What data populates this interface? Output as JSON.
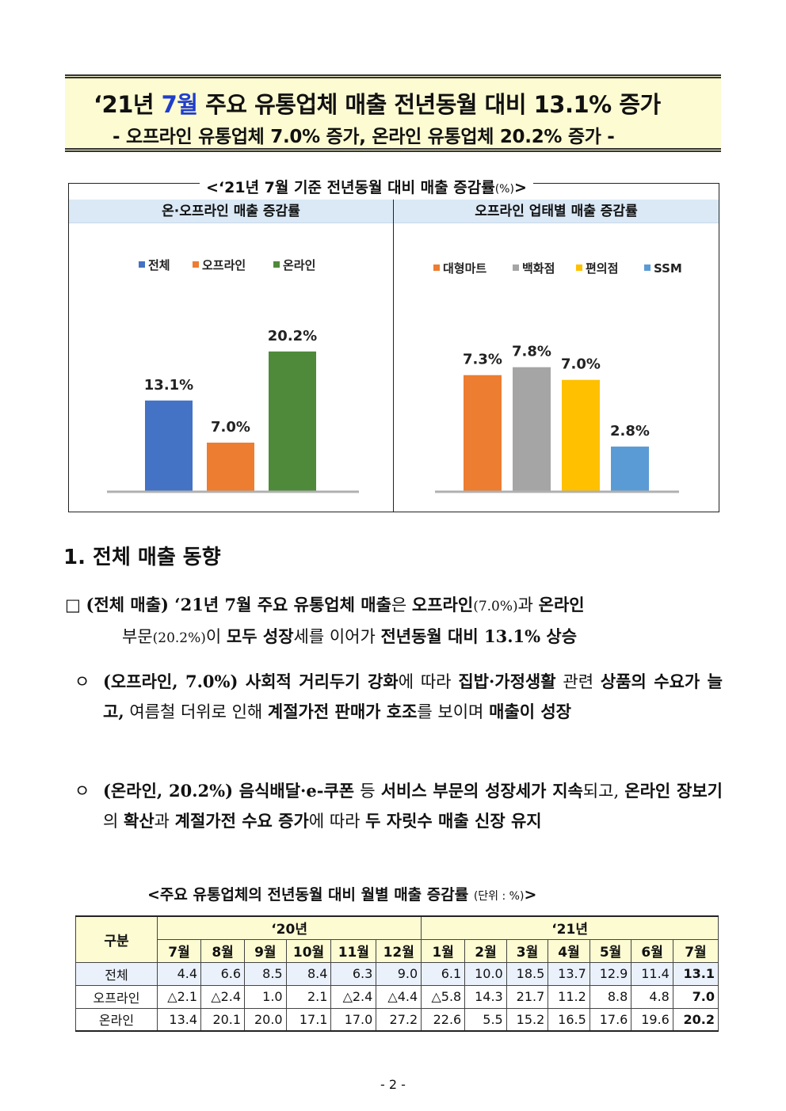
{
  "title": {
    "part1": "‘21년 ",
    "highlight": "7월",
    "part2": " 주요 유통업체 매출 전년동월 대비 13.1% 증가",
    "subtitle": "- 오프라인 유통업체 7.0% 증가, 온라인 유통업체 20.2% 증가 -"
  },
  "chart_caption": {
    "main": "<‘21년 7월 기준 전년동월 대비 매출 증감률",
    "unit": "(%)",
    "close": ">"
  },
  "chart_data": [
    {
      "type": "bar",
      "title": "온·오프라인 매출 증감률",
      "categories": [
        "전체",
        "오프라인",
        "온라인"
      ],
      "values": [
        13.1,
        7.0,
        20.2
      ],
      "labels": [
        "13.1%",
        "7.0%",
        "20.2%"
      ],
      "colors": [
        "#4472c4",
        "#ed7d31",
        "#4e8a3a"
      ],
      "legend": "top",
      "ylim": [
        0,
        25
      ],
      "grid": false
    },
    {
      "type": "bar",
      "title": "오프라인 업태별 매출 증감률",
      "categories": [
        "대형마트",
        "백화점",
        "편의점",
        "SSM"
      ],
      "values": [
        7.3,
        7.8,
        7.0,
        2.8
      ],
      "labels": [
        "7.3%",
        "7.8%",
        "7.0%",
        "2.8%"
      ],
      "colors": [
        "#ed7d31",
        "#a5a5a5",
        "#ffc000",
        "#5b9bd5"
      ],
      "legend": "top",
      "ylim": [
        0,
        10
      ],
      "grid": false
    }
  ],
  "section": {
    "title": "1. 전체 매출 동향"
  },
  "p1": {
    "box": "□",
    "a": "(전체 매출) ‘21년 7월 주요 유통업체 매출",
    "b": "은 ",
    "c": "오프라인",
    "d": "(7.0%)",
    "e": "과 ",
    "f": "온라인",
    "g": "부문",
    "h": "(20.2%)",
    "i": "이 ",
    "j": "모두 성장",
    "k": "세를 이어가 ",
    "l": "전년동월 대비 13.1% 상승"
  },
  "p2": {
    "mark": "ㅇ",
    "a": "(오프라인, 7.0%) 사회적 거리두기 강화",
    "b": "에 따라 ",
    "c": "집밥·가정생활",
    "d": " 관련 ",
    "e": "상품의 수요가 늘고,",
    "f": " 여름철 더위로 인해 ",
    "g": "계절가전 판매가 호조",
    "h": "를 보이며 ",
    "i": "매출이 성장"
  },
  "p3": {
    "mark": "ㅇ",
    "a": "(온라인, 20.2%) 음식배달·e-쿠폰",
    "b": " 등 ",
    "c": "서비스 부문의 성장세가 지속",
    "d": "되고, ",
    "e": "온라인 장보기",
    "f": "의 ",
    "g": "확산",
    "h": "과 ",
    "i": "계절가전 수요 증가",
    "j": "에 따라 ",
    "k": "두 자릿수 매출 신장 유지"
  },
  "table_caption": {
    "main": "<주요 유통업체의 전년동월 대비 월별 매출 증감률 ",
    "unit": "(단위 : %)",
    "close": ">"
  },
  "table": {
    "corner": "구분",
    "year1": "‘20년",
    "year2": "‘21년",
    "months": [
      "7월",
      "8월",
      "9월",
      "10월",
      "11월",
      "12월",
      "1월",
      "2월",
      "3월",
      "4월",
      "5월",
      "6월",
      "7월"
    ],
    "rows": [
      {
        "label": "전체",
        "values": [
          "4.4",
          "6.6",
          "8.5",
          "8.4",
          "6.3",
          "9.0",
          "6.1",
          "10.0",
          "18.5",
          "13.7",
          "12.9",
          "11.4",
          "13.1"
        ]
      },
      {
        "label": "오프라인",
        "values": [
          "△2.1",
          "△2.4",
          "1.0",
          "2.1",
          "△2.4",
          "△4.4",
          "△5.8",
          "14.3",
          "21.7",
          "11.2",
          "8.8",
          "4.8",
          "7.0"
        ]
      },
      {
        "label": "온라인",
        "values": [
          "13.4",
          "20.1",
          "20.0",
          "17.1",
          "17.0",
          "27.2",
          "22.6",
          "5.5",
          "15.2",
          "16.5",
          "17.6",
          "19.6",
          "20.2"
        ]
      }
    ]
  },
  "page_number": "- 2 -"
}
